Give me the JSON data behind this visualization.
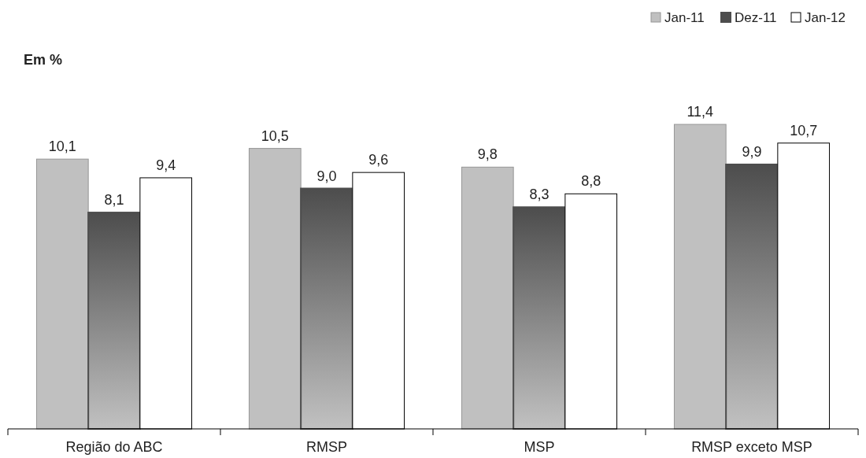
{
  "chart_data": {
    "type": "bar",
    "ylabel": "Em %",
    "categories": [
      "Região do ABC",
      "RMSP",
      "MSP",
      "RMSP exceto MSP"
    ],
    "legend": "top right",
    "series": [
      {
        "name": "Jan-11",
        "color": "#c0c0c0",
        "values": [
          10.1,
          10.5,
          9.8,
          11.4
        ],
        "value_labels": [
          "10,1",
          "10,5",
          "9,8",
          "11,4"
        ]
      },
      {
        "name": "Dez-11",
        "color": "#4d4d4d",
        "values": [
          8.1,
          9.0,
          8.3,
          9.9
        ],
        "value_labels": [
          "8,1",
          "9,0",
          "8,3",
          "9,9"
        ]
      },
      {
        "name": "Jan-12",
        "color": "#ffffff",
        "values": [
          9.4,
          9.6,
          8.8,
          10.7
        ],
        "value_labels": [
          "9,4",
          "9,6",
          "8,8",
          "10,7"
        ]
      }
    ]
  }
}
